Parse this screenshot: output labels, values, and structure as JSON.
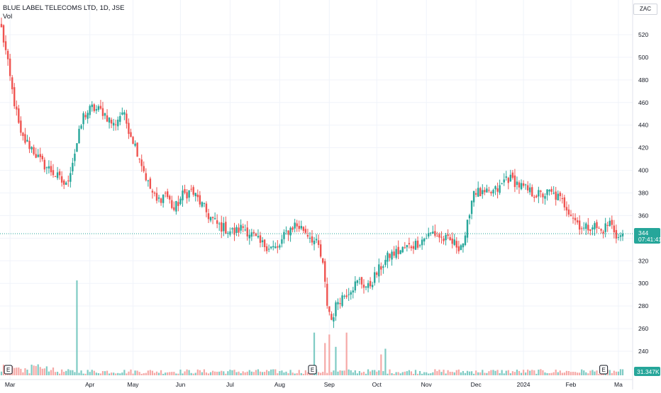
{
  "header": {
    "title": "BLUE LABEL TELECOMS LTD, 1D, JSE",
    "volume_label": "Vol"
  },
  "currency": "ZAC",
  "colors": {
    "up": "#26a69a",
    "down": "#ef5350",
    "up_volume": "#7fcbc4",
    "down_volume": "#f5a9a7",
    "grid": "#f0f3fa",
    "last_price_tag": "#26a69a",
    "volume_tag": "#26a69a"
  },
  "last_price": {
    "value": "344",
    "countdown": "07:41:41"
  },
  "volume_readout": "31.347K",
  "earnings_badge": "E",
  "chart_data": {
    "type": "candlestick",
    "y_ticks": [
      240,
      260,
      280,
      300,
      320,
      340,
      360,
      380,
      400,
      420,
      440,
      460,
      480,
      500,
      520
    ],
    "ylim": [
      225,
      532
    ],
    "x_tick_labels": [
      "Mar",
      "Apr",
      "May",
      "Jun",
      "Jul",
      "Aug",
      "Sep",
      "Oct",
      "Nov",
      "Dec",
      "2024",
      "Feb",
      "Ma"
    ],
    "earnings_events": [
      "Mar",
      "Sep",
      "Feb"
    ],
    "keypoints": [
      {
        "t": 0,
        "v": 525
      },
      {
        "t": 2,
        "v": 505
      },
      {
        "t": 5,
        "v": 470
      },
      {
        "t": 9,
        "v": 430
      },
      {
        "t": 14,
        "v": 420
      },
      {
        "t": 18,
        "v": 408
      },
      {
        "t": 24,
        "v": 398
      },
      {
        "t": 30,
        "v": 386
      },
      {
        "t": 34,
        "v": 416
      },
      {
        "t": 38,
        "v": 448
      },
      {
        "t": 42,
        "v": 455
      },
      {
        "t": 47,
        "v": 452
      },
      {
        "t": 52,
        "v": 440
      },
      {
        "t": 56,
        "v": 452
      },
      {
        "t": 60,
        "v": 432
      },
      {
        "t": 64,
        "v": 412
      },
      {
        "t": 68,
        "v": 388
      },
      {
        "t": 72,
        "v": 372
      },
      {
        "t": 76,
        "v": 380
      },
      {
        "t": 80,
        "v": 365
      },
      {
        "t": 84,
        "v": 378
      },
      {
        "t": 88,
        "v": 382
      },
      {
        "t": 92,
        "v": 372
      },
      {
        "t": 96,
        "v": 360
      },
      {
        "t": 100,
        "v": 352
      },
      {
        "t": 104,
        "v": 348
      },
      {
        "t": 108,
        "v": 345
      },
      {
        "t": 112,
        "v": 350
      },
      {
        "t": 116,
        "v": 343
      },
      {
        "t": 120,
        "v": 335
      },
      {
        "t": 124,
        "v": 333
      },
      {
        "t": 128,
        "v": 330
      },
      {
        "t": 132,
        "v": 345
      },
      {
        "t": 136,
        "v": 352
      },
      {
        "t": 140,
        "v": 348
      },
      {
        "t": 144,
        "v": 340
      },
      {
        "t": 147,
        "v": 332
      },
      {
        "t": 149,
        "v": 315
      },
      {
        "t": 151,
        "v": 282
      },
      {
        "t": 153,
        "v": 268
      },
      {
        "t": 156,
        "v": 285
      },
      {
        "t": 159,
        "v": 290
      },
      {
        "t": 162,
        "v": 296
      },
      {
        "t": 166,
        "v": 302
      },
      {
        "t": 170,
        "v": 296
      },
      {
        "t": 173,
        "v": 306
      },
      {
        "t": 176,
        "v": 315
      },
      {
        "t": 180,
        "v": 325
      },
      {
        "t": 184,
        "v": 328
      },
      {
        "t": 188,
        "v": 332
      },
      {
        "t": 192,
        "v": 335
      },
      {
        "t": 196,
        "v": 340
      },
      {
        "t": 200,
        "v": 345
      },
      {
        "t": 204,
        "v": 340
      },
      {
        "t": 208,
        "v": 337
      },
      {
        "t": 212,
        "v": 333
      },
      {
        "t": 215,
        "v": 338
      },
      {
        "t": 217,
        "v": 365
      },
      {
        "t": 219,
        "v": 383
      },
      {
        "t": 223,
        "v": 378
      },
      {
        "t": 227,
        "v": 380
      },
      {
        "t": 231,
        "v": 384
      },
      {
        "t": 234,
        "v": 394
      },
      {
        "t": 238,
        "v": 390
      },
      {
        "t": 242,
        "v": 384
      },
      {
        "t": 246,
        "v": 380
      },
      {
        "t": 250,
        "v": 378
      },
      {
        "t": 254,
        "v": 380
      },
      {
        "t": 258,
        "v": 376
      },
      {
        "t": 262,
        "v": 368
      },
      {
        "t": 266,
        "v": 356
      },
      {
        "t": 270,
        "v": 348
      },
      {
        "t": 274,
        "v": 352
      },
      {
        "t": 278,
        "v": 346
      },
      {
        "t": 282,
        "v": 354
      },
      {
        "t": 286,
        "v": 340
      },
      {
        "t": 288,
        "v": 344
      }
    ],
    "volume_spikes": [
      {
        "t": 35,
        "v": 1.0
      },
      {
        "t": 145,
        "v": 0.45
      },
      {
        "t": 150,
        "v": 0.34
      },
      {
        "t": 152,
        "v": 0.43
      },
      {
        "t": 155,
        "v": 0.3
      },
      {
        "t": 160,
        "v": 0.45
      },
      {
        "t": 176,
        "v": 0.22
      },
      {
        "t": 178,
        "v": 0.28
      },
      {
        "t": 220,
        "v": 0.05
      }
    ]
  }
}
